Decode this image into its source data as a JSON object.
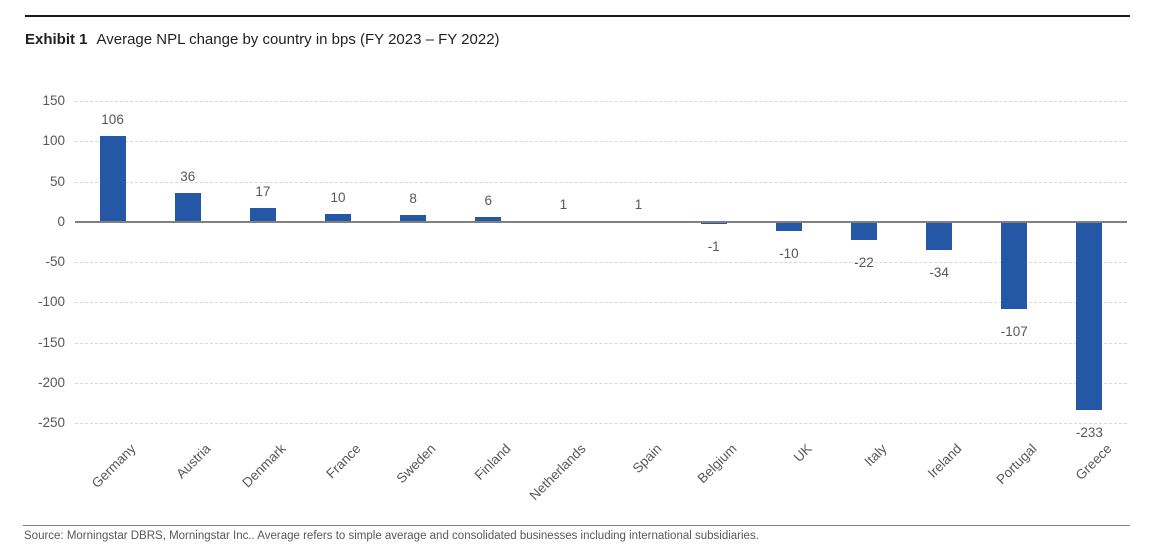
{
  "header": {
    "exhibit_label": "Exhibit 1",
    "title": "Average NPL change by country in bps (FY 2023 – FY 2022)"
  },
  "chart_data": {
    "type": "bar",
    "title": "Average NPL change by country in bps (FY 2023 – FY 2022)",
    "categories": [
      "Germany",
      "Austria",
      "Denmark",
      "France",
      "Sweden",
      "Finland",
      "Netherlands",
      "Spain",
      "Belgium",
      "UK",
      "Italy",
      "Ireland",
      "Portugal",
      "Greece"
    ],
    "values": [
      106,
      36,
      17,
      10,
      8,
      6,
      1,
      1,
      -1,
      -10,
      -22,
      -34,
      -107,
      -233
    ],
    "xlabel": "",
    "ylabel": "",
    "ylim": [
      -250,
      150
    ],
    "yticks": [
      150,
      100,
      50,
      0,
      -50,
      -100,
      -150,
      -200,
      -250
    ],
    "grid": "horizontal-dashed",
    "legend_position": "none",
    "data_labels": "on",
    "colors": {
      "bar": "#2458a7",
      "label_text": "#58585b",
      "gridline": "#d8d8d8",
      "zero_axis": "#808080"
    }
  },
  "footer": {
    "source": "Source: Morningstar DBRS, Morningstar Inc.. Average refers to simple average and consolidated businesses including international subsidiaries."
  }
}
